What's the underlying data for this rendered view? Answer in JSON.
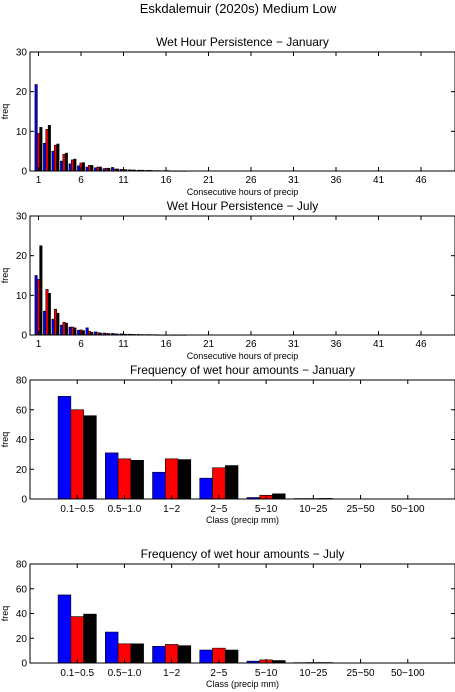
{
  "figure_title": "Eskdalemuir (2020s) Medium Low",
  "colors": {
    "series": [
      "#0000ff",
      "#ff0000",
      "#000000"
    ],
    "axis": "#000000",
    "background": "#ffffff"
  },
  "chart_data": [
    {
      "type": "bar",
      "title": "Wet Hour Persistence − January",
      "xlabel": "Consecutive hours of precip",
      "ylabel": "freq",
      "ylim": [
        0,
        30
      ],
      "xlim": [
        0,
        50
      ],
      "yticks": [
        0,
        10,
        20,
        30
      ],
      "xticks": [
        1,
        6,
        11,
        16,
        21,
        26,
        31,
        36,
        41,
        46
      ],
      "x": [
        1,
        2,
        3,
        4,
        5,
        6,
        7,
        8,
        9,
        10,
        11,
        12,
        13,
        14,
        15,
        16,
        17,
        18
      ],
      "series": [
        {
          "values": [
            21.8,
            7,
            5,
            2.5,
            1.8,
            1.3,
            1,
            0.8,
            0.6,
            0.9,
            0.4,
            0.3,
            0.2,
            0.15,
            0.1,
            0.1,
            0.05,
            0.05
          ]
        },
        {
          "values": [
            9.5,
            10.5,
            6.5,
            4.2,
            2.8,
            2.0,
            1.4,
            1.0,
            0.7,
            0.5,
            0.35,
            0.25,
            0.2,
            0.15,
            0.1,
            0.1,
            0.05,
            0.05
          ]
        },
        {
          "values": [
            11,
            11.5,
            6.8,
            4.5,
            3.0,
            2.1,
            1.4,
            1.0,
            0.7,
            0.5,
            0.35,
            0.25,
            0.2,
            0.15,
            0.1,
            0.1,
            0.05,
            0.05
          ]
        }
      ]
    },
    {
      "type": "bar",
      "title": "Wet Hour Persistence − July",
      "xlabel": "Consecutive hours of precip",
      "ylabel": "freq",
      "ylim": [
        0,
        30
      ],
      "xlim": [
        0,
        50
      ],
      "yticks": [
        0,
        10,
        20,
        30
      ],
      "xticks": [
        1,
        6,
        11,
        16,
        21,
        26,
        31,
        36,
        41,
        46
      ],
      "x": [
        1,
        2,
        3,
        4,
        5,
        6,
        7,
        8,
        9,
        10,
        11,
        12,
        13,
        14,
        15,
        16,
        17,
        18
      ],
      "series": [
        {
          "values": [
            15,
            6,
            4,
            2.5,
            2,
            1.2,
            1.8,
            0.8,
            0.5,
            0.4,
            0.3,
            0.2,
            0.15,
            0.1,
            0.1,
            0.05,
            0.05,
            0.05
          ]
        },
        {
          "values": [
            14,
            11.5,
            6.5,
            3.2,
            2.0,
            1.3,
            0.9,
            0.6,
            0.4,
            0.3,
            0.2,
            0.15,
            0.1,
            0.1,
            0.05,
            0.05,
            0.05,
            0.05
          ]
        },
        {
          "values": [
            22.5,
            10.5,
            5.5,
            3.0,
            1.8,
            1.1,
            0.7,
            0.5,
            0.35,
            0.25,
            0.2,
            0.15,
            0.1,
            0.1,
            0.05,
            0.05,
            0.05,
            0.05
          ]
        }
      ]
    },
    {
      "type": "bar",
      "title": "Frequency of wet hour amounts − January",
      "xlabel": "Class (precip mm)",
      "ylabel": "freq",
      "ylim": [
        0,
        80
      ],
      "yticks": [
        0,
        20,
        40,
        60,
        80
      ],
      "categories": [
        "0.1−0.5",
        "0.5−1.0",
        "1−2",
        "2−5",
        "5−10",
        "10−25",
        "25−50",
        "50−100"
      ],
      "series": [
        {
          "values": [
            69,
            31,
            18,
            14,
            1,
            0.3,
            0,
            0
          ]
        },
        {
          "values": [
            60,
            27,
            27,
            21,
            2.5,
            0.3,
            0,
            0
          ]
        },
        {
          "values": [
            56,
            26,
            26.5,
            22.5,
            3.5,
            0.4,
            0,
            0
          ]
        }
      ]
    },
    {
      "type": "bar",
      "title": "Frequency of wet hour amounts − July",
      "xlabel": "Class (precip mm)",
      "ylabel": "freq",
      "ylim": [
        0,
        80
      ],
      "yticks": [
        0,
        20,
        40,
        60,
        80
      ],
      "categories": [
        "0.1−0.5",
        "0.5−1.0",
        "1−2",
        "2−5",
        "5−10",
        "10−25",
        "25−50",
        "50−100"
      ],
      "series": [
        {
          "values": [
            55,
            25,
            13.5,
            10.5,
            1.5,
            0.3,
            0,
            0
          ]
        },
        {
          "values": [
            37.5,
            15.5,
            15,
            12,
            2.5,
            0.4,
            0,
            0
          ]
        },
        {
          "values": [
            39.5,
            15.5,
            14,
            10.5,
            2,
            0.4,
            0,
            0
          ]
        }
      ]
    }
  ]
}
